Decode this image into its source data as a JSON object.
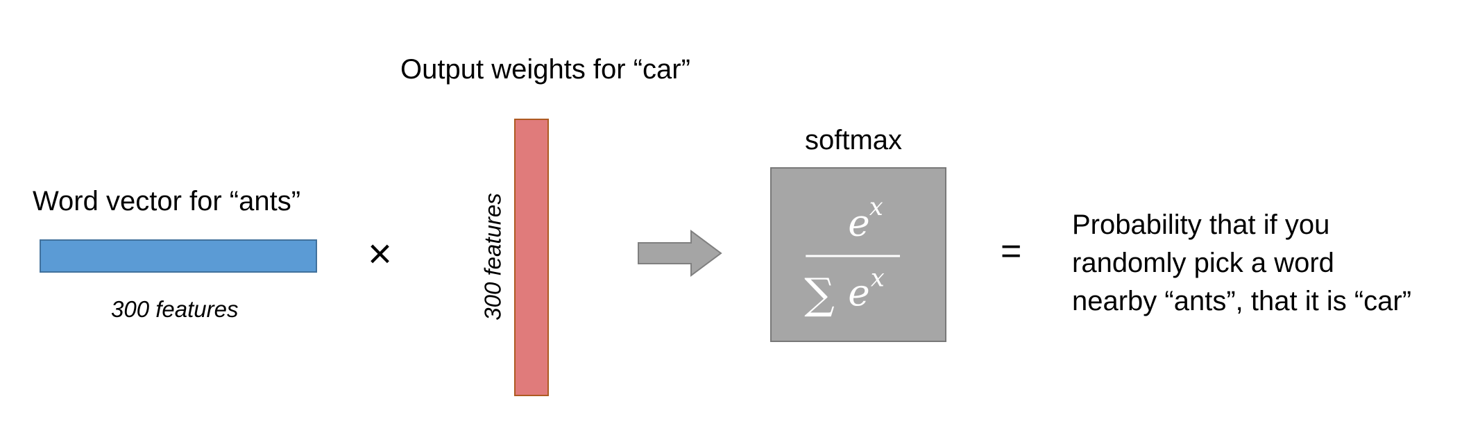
{
  "word_vector": {
    "title": "Word vector for “ants”",
    "features_label": "300 features",
    "bar_color": "#5B9BD5"
  },
  "operator_times": "×",
  "output_weights": {
    "title": "Output weights for “car”",
    "features_label": "300 features",
    "bar_color": "#E07B7B"
  },
  "arrow_color": "#A5A5A5",
  "softmax": {
    "title": "softmax",
    "box_color": "#A6A6A6",
    "formula_numerator": "e",
    "formula_exponent": "x",
    "formula_sum": "∑",
    "formula_denominator_base": "e",
    "formula_denominator_exponent": "x"
  },
  "operator_equals": "=",
  "result": {
    "lines": [
      "Probability that if you",
      "randomly pick a word",
      "nearby “ants”, that it is “car”"
    ]
  }
}
